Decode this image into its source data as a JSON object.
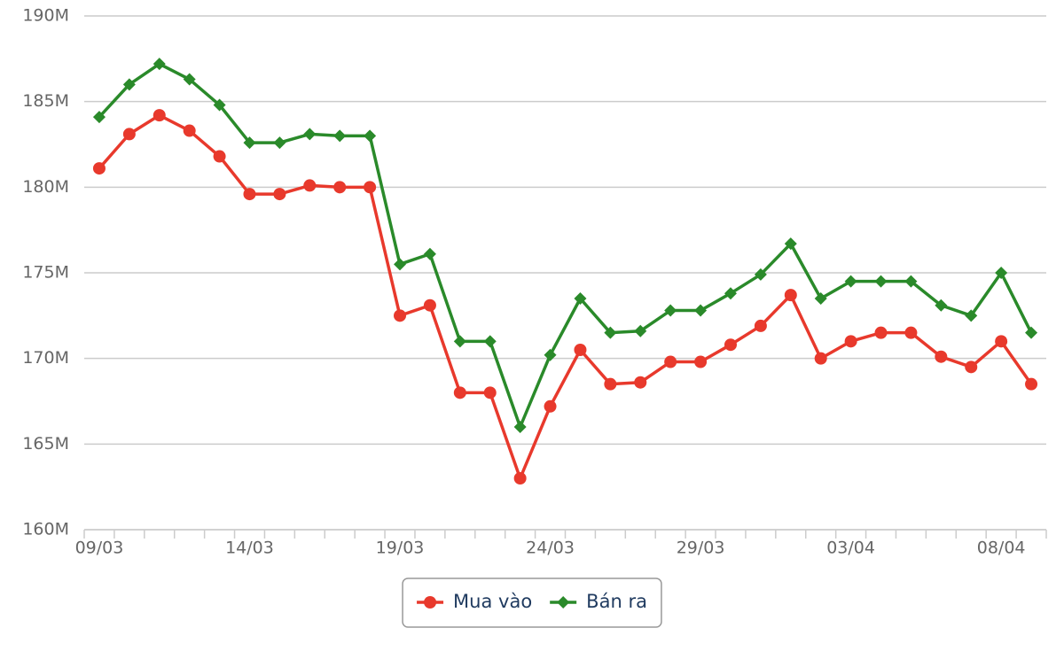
{
  "chart_data": {
    "type": "line",
    "categories": [
      "09/03",
      null,
      null,
      null,
      null,
      "14/03",
      null,
      null,
      null,
      null,
      "19/03",
      null,
      null,
      null,
      null,
      "24/03",
      null,
      null,
      null,
      null,
      "29/03",
      null,
      null,
      null,
      null,
      "03/04",
      null,
      null,
      null,
      null,
      "08/04",
      null
    ],
    "series": [
      {
        "name": "Mua vào",
        "color": "#e8392c",
        "marker": "circle",
        "values": [
          181.1,
          183.1,
          184.2,
          183.3,
          181.8,
          179.6,
          179.6,
          180.1,
          180.0,
          180.0,
          172.5,
          173.1,
          168.0,
          168.0,
          163.0,
          167.2,
          170.5,
          168.5,
          168.6,
          169.8,
          169.8,
          170.8,
          171.9,
          173.7,
          170.0,
          171.0,
          171.5,
          171.5,
          170.1,
          169.5,
          171.0,
          168.5
        ]
      },
      {
        "name": "Bán ra",
        "color": "#2a8a2a",
        "marker": "diamond",
        "values": [
          184.1,
          186.0,
          187.2,
          186.3,
          184.8,
          182.6,
          182.6,
          183.1,
          183.0,
          183.0,
          175.5,
          176.1,
          171.0,
          171.0,
          166.0,
          170.2,
          173.5,
          171.5,
          171.6,
          172.8,
          172.8,
          173.8,
          174.9,
          176.7,
          173.5,
          174.5,
          174.5,
          174.5,
          173.1,
          172.5,
          175.0,
          171.5
        ]
      }
    ],
    "ylim": [
      160,
      190
    ],
    "yticks": [
      {
        "value": 160,
        "label": "160M"
      },
      {
        "value": 165,
        "label": "165M"
      },
      {
        "value": 170,
        "label": "170M"
      },
      {
        "value": 175,
        "label": "175M"
      },
      {
        "value": 180,
        "label": "180M"
      },
      {
        "value": 185,
        "label": "185M"
      },
      {
        "value": 190,
        "label": "190M"
      }
    ],
    "grid": true,
    "legend": "bottom"
  }
}
